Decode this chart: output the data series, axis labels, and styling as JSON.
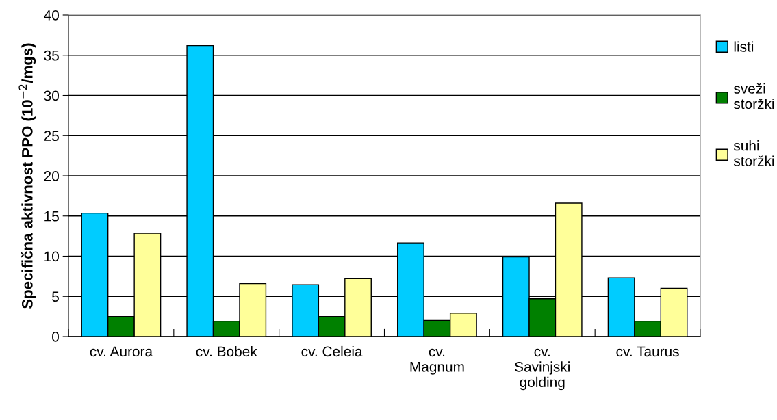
{
  "chart_data": {
    "type": "bar",
    "ylabel": "Specifična aktivnost PPO (10$^{−2}$/mgs)",
    "categories": [
      "cv. Aurora",
      "cv. Bobek",
      "cv. Celeia",
      "cv.\nMagnum",
      "cv.\nSavinjski\ngolding",
      "cv. Taurus"
    ],
    "series": [
      {
        "name": "listi",
        "color": "#00ccff",
        "values": [
          15.35,
          36.2,
          6.45,
          11.65,
          9.9,
          7.3
        ]
      },
      {
        "name": "sveži\nstoržki",
        "color": "#008000",
        "values": [
          2.5,
          1.9,
          2.5,
          2.0,
          4.7,
          1.9
        ]
      },
      {
        "name": "suhi\nstoržki",
        "color": "#ffff99",
        "values": [
          12.85,
          6.6,
          7.2,
          2.9,
          16.6,
          6.0
        ]
      }
    ],
    "ylim": [
      0,
      40
    ],
    "yticks": [
      0,
      5,
      10,
      15,
      20,
      25,
      30,
      35,
      40
    ],
    "grid": "y",
    "legend": "right"
  }
}
